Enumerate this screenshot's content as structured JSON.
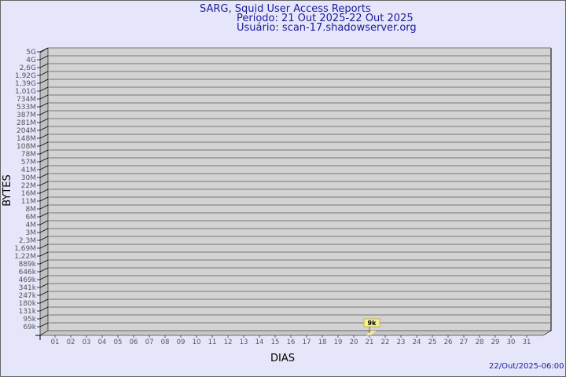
{
  "title": "SARG, Squid User Access Reports",
  "period": "Período: 21 Out 2025-22 Out 2025",
  "user": "Usuário: scan-17.shadowserver.org",
  "timestamp": "22/Out/2025-06:00",
  "chart_data": {
    "type": "bar",
    "xlabel": "DIAS",
    "ylabel": "BYTES",
    "y_tick_labels": [
      "5G",
      "4G",
      "2,6G",
      "1,92G",
      "1,39G",
      "1,01G",
      "734M",
      "533M",
      "387M",
      "281M",
      "204M",
      "148M",
      "108M",
      "78M",
      "57M",
      "41M",
      "30M",
      "22M",
      "16M",
      "11M",
      "8M",
      "6M",
      "4M",
      "3M",
      "2,3M",
      "1,69M",
      "1,22M",
      "889k",
      "646k",
      "469k",
      "341k",
      "247k",
      "180k",
      "131k",
      "95k",
      "69k"
    ],
    "categories": [
      "01",
      "02",
      "03",
      "04",
      "05",
      "06",
      "07",
      "08",
      "09",
      "10",
      "11",
      "12",
      "13",
      "14",
      "15",
      "16",
      "17",
      "18",
      "19",
      "20",
      "21",
      "22",
      "23",
      "24",
      "25",
      "26",
      "27",
      "28",
      "29",
      "30",
      "31"
    ],
    "values": [
      {
        "x": "21",
        "y": 9000,
        "label": "9k"
      }
    ],
    "grid": true,
    "colors": {
      "bar": "#f5e6a0",
      "label_bg": "#f0f0a0",
      "wall": "#d3d3d3",
      "title": "#1a1a9c"
    }
  }
}
